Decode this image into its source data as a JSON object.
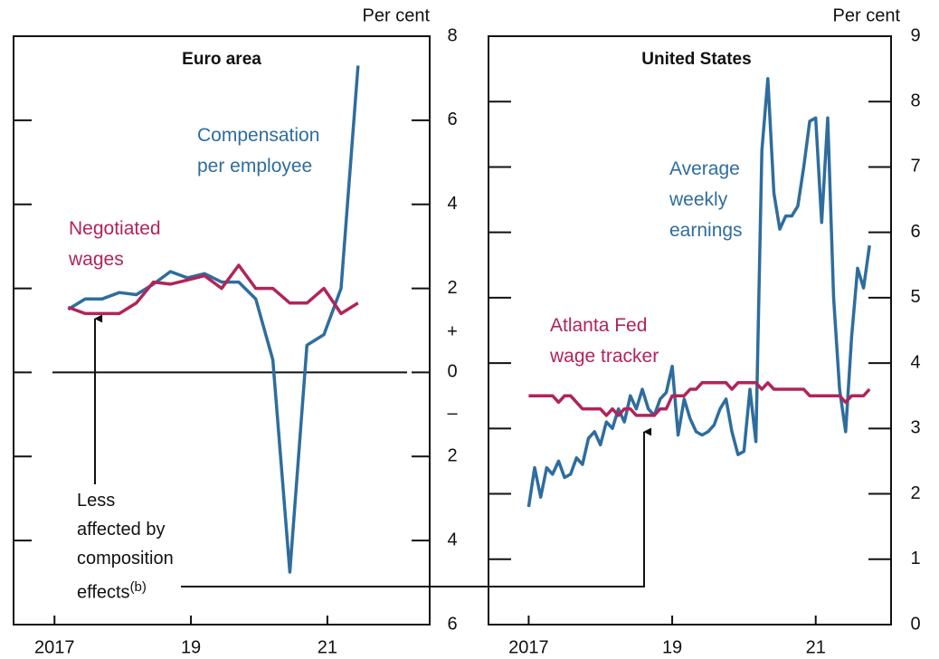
{
  "chart_data": [
    {
      "type": "line",
      "title": "Euro area",
      "y_axis_label": "Per cent",
      "x": [
        2017.2,
        2017.45,
        2017.7,
        2017.95,
        2018.2,
        2018.45,
        2018.7,
        2018.95,
        2019.2,
        2019.45,
        2019.7,
        2019.95,
        2020.2,
        2020.45,
        2020.7,
        2020.95,
        2021.2,
        2021.45
      ],
      "series": [
        {
          "name": "Compensation per employee",
          "color": "#2e6d9e",
          "values": [
            1.5,
            1.75,
            1.75,
            1.9,
            1.85,
            2.1,
            2.4,
            2.25,
            2.35,
            2.15,
            2.15,
            1.75,
            0.3,
            -4.75,
            0.65,
            0.9,
            2.0,
            7.3
          ]
        },
        {
          "name": "Negotiated wages",
          "color": "#b0245a",
          "values": [
            1.55,
            1.4,
            1.4,
            1.4,
            1.65,
            2.15,
            2.1,
            2.2,
            2.3,
            2.0,
            2.55,
            2.0,
            2.0,
            1.65,
            1.65,
            2.0,
            1.4,
            1.65
          ]
        }
      ],
      "xlim": [
        2016.4,
        2022.5
      ],
      "xticks": [
        {
          "value": 2017,
          "label": "2017"
        },
        {
          "value": 2019,
          "label": "19"
        },
        {
          "value": 2021,
          "label": "21"
        }
      ],
      "ylim": [
        -6,
        8
      ],
      "yticks": [
        8,
        6,
        4,
        2,
        0,
        {
          "value": -2,
          "label": "2"
        },
        {
          "value": -4,
          "label": "4"
        },
        {
          "value": -6,
          "label": "6"
        }
      ],
      "sign_labels": [
        "+",
        "–"
      ],
      "zero_line": true,
      "note_lines": [
        "Less",
        "affected by",
        "composition",
        "effects"
      ],
      "note_ref": "(b)"
    },
    {
      "type": "line",
      "title": "United States",
      "y_axis_label": "Per cent",
      "x": [
        2017.0,
        2017.083,
        2017.167,
        2017.25,
        2017.333,
        2017.417,
        2017.5,
        2017.583,
        2017.667,
        2017.75,
        2017.833,
        2017.917,
        2018.0,
        2018.083,
        2018.167,
        2018.25,
        2018.333,
        2018.417,
        2018.5,
        2018.583,
        2018.667,
        2018.75,
        2018.833,
        2018.917,
        2019.0,
        2019.083,
        2019.167,
        2019.25,
        2019.333,
        2019.417,
        2019.5,
        2019.583,
        2019.667,
        2019.75,
        2019.833,
        2019.917,
        2020.0,
        2020.083,
        2020.167,
        2020.25,
        2020.333,
        2020.417,
        2020.5,
        2020.583,
        2020.667,
        2020.75,
        2020.833,
        2020.917,
        2021.0,
        2021.083,
        2021.167,
        2021.25,
        2021.333,
        2021.417,
        2021.5,
        2021.583,
        2021.667,
        2021.75
      ],
      "series": [
        {
          "name": "Average weekly earnings",
          "color": "#2e6d9e",
          "values": [
            1.8,
            2.4,
            1.95,
            2.4,
            2.3,
            2.5,
            2.25,
            2.3,
            2.55,
            2.45,
            2.85,
            2.95,
            2.75,
            3.1,
            3.0,
            3.3,
            3.1,
            3.5,
            3.3,
            3.6,
            3.3,
            3.2,
            3.45,
            3.55,
            3.95,
            2.9,
            3.45,
            3.15,
            2.95,
            2.9,
            2.95,
            3.05,
            3.3,
            3.45,
            2.95,
            2.6,
            2.65,
            3.6,
            2.8,
            7.25,
            8.35,
            6.6,
            6.05,
            6.25,
            6.25,
            6.4,
            7.0,
            7.7,
            7.75,
            6.15,
            7.75,
            5.0,
            3.6,
            2.95,
            4.4,
            5.45,
            5.15,
            5.8
          ]
        },
        {
          "name": "Atlanta Fed wage tracker",
          "color": "#b0245a",
          "values": [
            3.5,
            3.5,
            3.5,
            3.5,
            3.5,
            3.4,
            3.5,
            3.5,
            3.4,
            3.3,
            3.3,
            3.3,
            3.3,
            3.2,
            3.3,
            3.2,
            3.3,
            3.3,
            3.2,
            3.2,
            3.2,
            3.2,
            3.3,
            3.3,
            3.5,
            3.5,
            3.5,
            3.6,
            3.6,
            3.7,
            3.7,
            3.7,
            3.7,
            3.7,
            3.6,
            3.7,
            3.7,
            3.7,
            3.7,
            3.6,
            3.7,
            3.6,
            3.6,
            3.6,
            3.6,
            3.6,
            3.6,
            3.5,
            3.5,
            3.5,
            3.5,
            3.5,
            3.5,
            3.4,
            3.5,
            3.5,
            3.5,
            3.6
          ]
        }
      ],
      "xlim": [
        2016.44,
        2022.05
      ],
      "xticks": [
        {
          "value": 2017,
          "label": "2017"
        },
        {
          "value": 2019,
          "label": "19"
        },
        {
          "value": 2021,
          "label": "21"
        }
      ],
      "ylim": [
        0,
        9
      ],
      "yticks": [
        9,
        8,
        7,
        6,
        5,
        4,
        3,
        2,
        1,
        0
      ]
    }
  ]
}
